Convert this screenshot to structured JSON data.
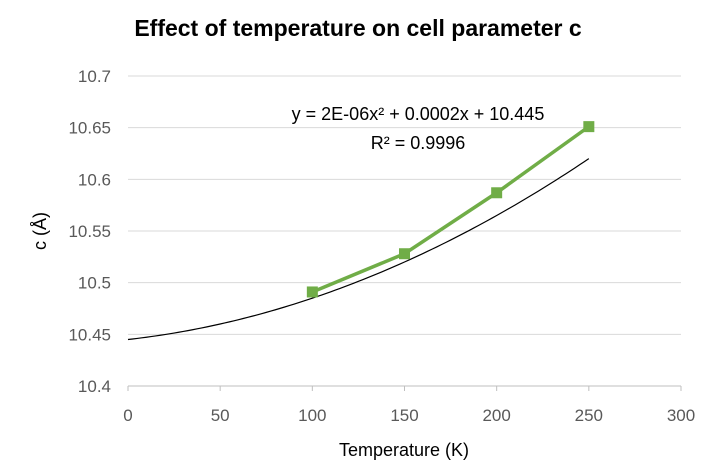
{
  "chart_data": {
    "type": "scatter",
    "title": "Effect of temperature on  cell parameter c",
    "xlabel": "Temperature (K)",
    "ylabel": "c (Å)",
    "xlim": [
      0,
      300
    ],
    "ylim": [
      10.4,
      10.7
    ],
    "xticks": [
      "0",
      "50",
      "100",
      "150",
      "200",
      "250",
      "300"
    ],
    "yticks": [
      "10.4",
      "10.45",
      "10.5",
      "10.55",
      "10.6",
      "10.65",
      "10.7"
    ],
    "grid": "horizontal",
    "legend": "none",
    "series": [
      {
        "marker": "square",
        "color": "#70AD47",
        "x": [
          100,
          150,
          200,
          250
        ],
        "y": [
          10.491,
          10.528,
          10.587,
          10.651
        ]
      }
    ],
    "trendline": {
      "type": "polynomial-2",
      "color": "#000000",
      "a": 2e-06,
      "b": 0.0002,
      "c": 10.445,
      "xrange": [
        0,
        250
      ],
      "equation": "y = 2E-06x² + 0.0002x + 10.445",
      "r_squared": "R² = 0.9996"
    }
  }
}
